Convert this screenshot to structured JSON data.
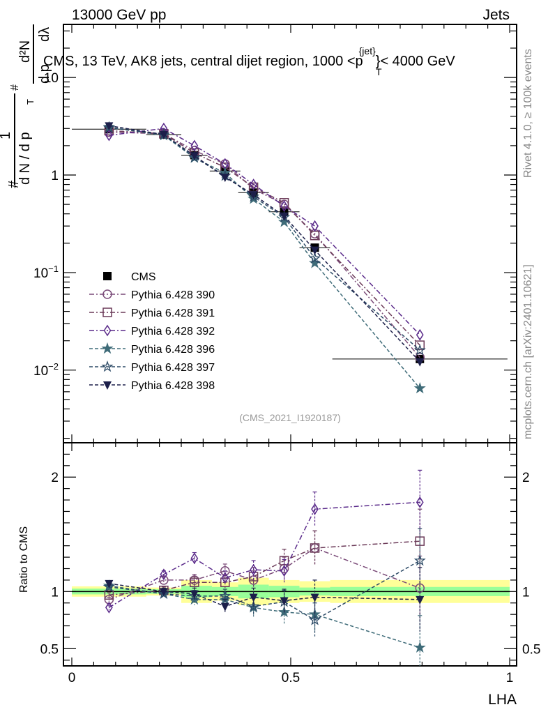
{
  "header": {
    "left_label": "13000 GeV pp",
    "right_label": "Jets"
  },
  "side_labels": {
    "rivet": "Rivet 4.1.0, ≥ 100k events",
    "mcplots": "mcplots.cern.ch [arXiv:2401.10621]"
  },
  "analysis_id": "(CMS_2021_I1920187)",
  "chart_data": [
    {
      "type": "scatter",
      "panel": "main",
      "title": "CMS, 13 TeV, AK8 jets, central dijet region, 1000 <p_T^{jet}< 4000 GeV",
      "title_parts": {
        "prefix": "CMS, 13 TeV, AK8 jets, central dijet region, 1000 <",
        "p": "p",
        "sup": "{jet}",
        "sub": "T",
        "suffix": "}< 4000 GeV"
      },
      "ylabel": "1/dN/dp_T  d²N/dp_T dλ",
      "ylabel_parts": {
        "hash": "#",
        "one": "1",
        "den": "d N / d p",
        "sub": "T",
        "num": "d²N",
        "den2": "d p",
        "lam": "dλ"
      },
      "xlabel": "LHA",
      "yscale": "log",
      "xlim": [
        0,
        1
      ],
      "ylim": [
        0.0018,
        35
      ],
      "ytick_labels": [
        {
          "value": 10,
          "base": "10",
          "exp": ""
        },
        {
          "value": 1,
          "base": "1",
          "exp": ""
        },
        {
          "value": 0.1,
          "base": "10",
          "exp": "−1"
        },
        {
          "value": 0.01,
          "base": "10",
          "exp": "−2"
        }
      ],
      "x": [
        0.085,
        0.21,
        0.28,
        0.35,
        0.415,
        0.485,
        0.555,
        0.795
      ],
      "x_err": [
        0.085,
        0.04,
        0.03,
        0.035,
        0.035,
        0.035,
        0.035,
        0.2
      ],
      "series": [
        {
          "name": "CMS",
          "style": "data",
          "marker": "square-filled",
          "color": "#000000",
          "values": [
            2.95,
            2.6,
            1.6,
            1.1,
            0.66,
            0.42,
            0.18,
            0.013
          ]
        },
        {
          "name": "Pythia 6.428 390",
          "marker": "circle-open",
          "color": "#7a4a78",
          "dash": "dashdot",
          "values": [
            2.75,
            2.65,
            1.78,
            1.3,
            0.72,
            0.5,
            0.25,
            0.0135
          ]
        },
        {
          "name": "Pythia 6.428 391",
          "marker": "square-open",
          "color": "#6b3a58",
          "dash": "dashdot",
          "values": [
            2.85,
            2.65,
            1.68,
            1.2,
            0.75,
            0.52,
            0.24,
            0.018
          ]
        },
        {
          "name": "Pythia 6.428 392",
          "marker": "diamond-open",
          "color": "#5a2a8a",
          "dash": "dashdot",
          "values": [
            2.55,
            3.0,
            2.0,
            1.3,
            0.8,
            0.48,
            0.3,
            0.023
          ]
        },
        {
          "name": "Pythia 6.428 396",
          "marker": "star-filled",
          "color": "#3e6b78",
          "dash": "dashed",
          "values": [
            3.1,
            2.55,
            1.5,
            1.05,
            0.57,
            0.33,
            0.125,
            0.0065
          ]
        },
        {
          "name": "Pythia 6.428 397",
          "marker": "star-open",
          "color": "#2c4a66",
          "dash": "dashed",
          "values": [
            3.05,
            2.6,
            1.52,
            0.98,
            0.6,
            0.37,
            0.14,
            0.016
          ]
        },
        {
          "name": "Pythia 6.428 398",
          "marker": "triangle-down-filled",
          "color": "#1c1f4a",
          "dash": "dashed",
          "values": [
            3.2,
            2.6,
            1.58,
            0.95,
            0.63,
            0.38,
            0.17,
            0.0122
          ]
        }
      ],
      "legend_location": "center-left"
    },
    {
      "type": "scatter",
      "panel": "ratio",
      "ylabel": "Ratio to CMS",
      "xlabel": "LHA",
      "xlim": [
        0,
        1
      ],
      "ylim": [
        0.35,
        2.3
      ],
      "ytick_labels": [
        "0.5",
        "1",
        "2"
      ],
      "xtick_labels": [
        "0",
        "0.5",
        "1"
      ],
      "reference_line": 1,
      "bands": {
        "bin_edges": [
          0,
          0.17,
          0.25,
          0.32,
          0.38,
          0.45,
          0.52,
          0.59,
          1.0
        ],
        "stat_halfwidth": [
          0.025,
          0.02,
          0.05,
          0.04,
          0.06,
          0.05,
          0.035,
          0.04
        ],
        "total_halfwidth": [
          0.045,
          0.035,
          0.1,
          0.08,
          0.12,
          0.1,
          0.09,
          0.1
        ],
        "stat_color": "#99ff99",
        "total_color": "#ffff99"
      },
      "x": [
        0.085,
        0.21,
        0.28,
        0.35,
        0.415,
        0.485,
        0.555,
        0.795
      ],
      "series": [
        {
          "name": "Pythia 6.428 390",
          "values": [
            0.93,
            1.1,
            1.1,
            1.18,
            1.1,
            1.2,
            1.38,
            1.03
          ]
        },
        {
          "name": "Pythia 6.428 391",
          "values": [
            0.97,
            1.01,
            1.08,
            1.08,
            1.13,
            1.27,
            1.38,
            1.44
          ]
        },
        {
          "name": "Pythia 6.428 392",
          "values": [
            0.86,
            1.15,
            1.29,
            1.12,
            1.19,
            1.18,
            1.72,
            1.78
          ]
        },
        {
          "name": "Pythia 6.428 396",
          "values": [
            1.05,
            0.98,
            0.93,
            0.93,
            0.86,
            0.82,
            0.8,
            0.51
          ]
        },
        {
          "name": "Pythia 6.428 397",
          "values": [
            1.04,
            0.98,
            0.96,
            0.96,
            0.87,
            0.91,
            0.75,
            1.27
          ]
        },
        {
          "name": "Pythia 6.428 398",
          "values": [
            1.07,
            1.0,
            0.98,
            0.87,
            0.95,
            0.92,
            0.95,
            0.93
          ]
        }
      ],
      "errors": [
        0.02,
        0.03,
        0.05,
        0.06,
        0.08,
        0.1,
        0.15,
        0.28
      ]
    }
  ]
}
